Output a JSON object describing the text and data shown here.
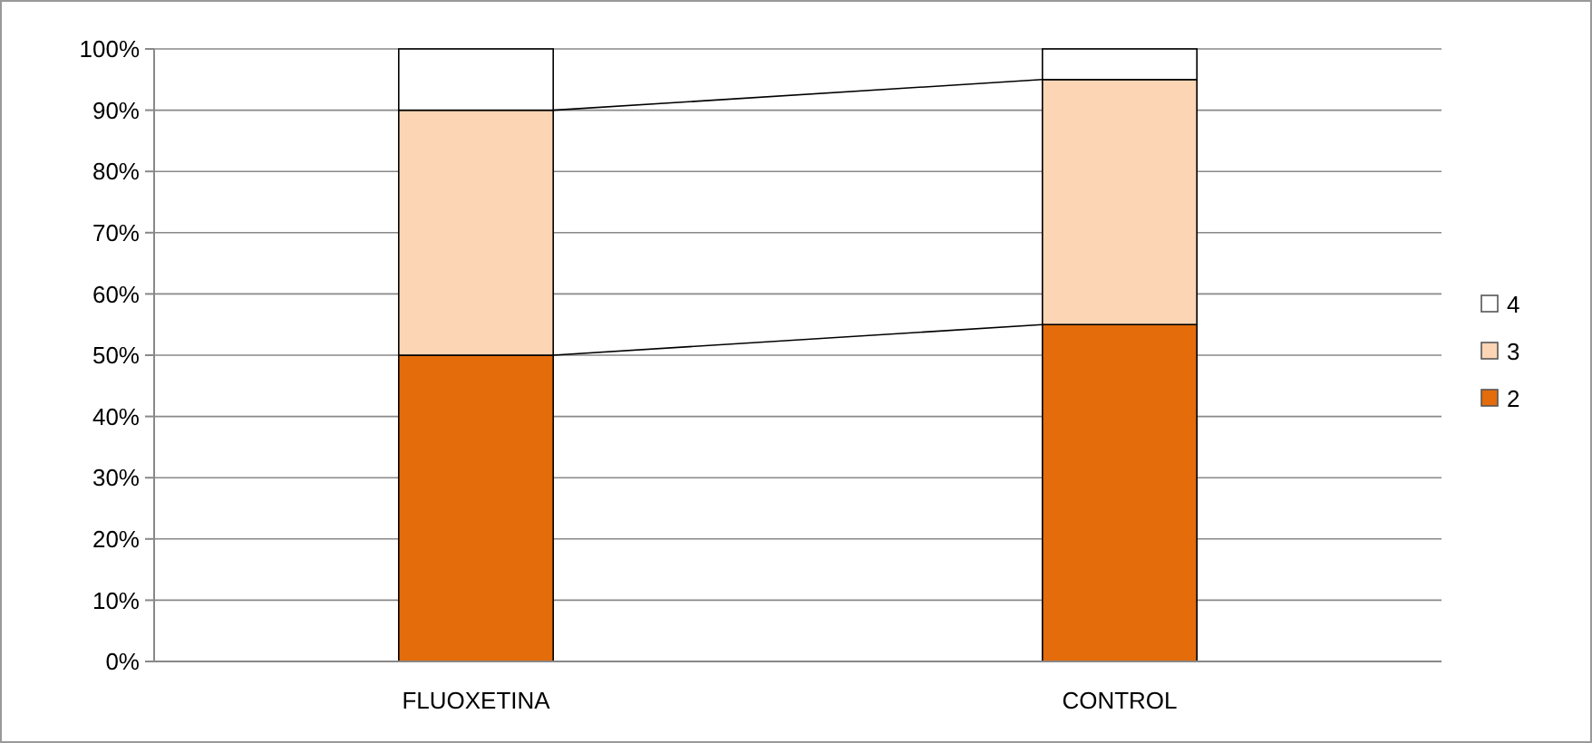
{
  "chart_data": {
    "type": "bar",
    "stacked": true,
    "categories": [
      "FLUOXETINA",
      "CONTROL"
    ],
    "series": [
      {
        "name": "2",
        "color": "#e46c0a",
        "values": [
          50,
          55
        ]
      },
      {
        "name": "3",
        "color": "#fcd5b5",
        "values": [
          40,
          40
        ]
      },
      {
        "name": "4",
        "color": "#ffffff",
        "values": [
          10,
          5
        ]
      }
    ],
    "ylim": [
      0,
      100
    ],
    "yticks": [
      {
        "value": 0,
        "label": "0%"
      },
      {
        "value": 10,
        "label": "10%"
      },
      {
        "value": 20,
        "label": "20%"
      },
      {
        "value": 30,
        "label": "30%"
      },
      {
        "value": 40,
        "label": "40%"
      },
      {
        "value": 50,
        "label": "50%"
      },
      {
        "value": 60,
        "label": "60%"
      },
      {
        "value": 70,
        "label": "70%"
      },
      {
        "value": 80,
        "label": "80%"
      },
      {
        "value": 90,
        "label": "90%"
      },
      {
        "value": 100,
        "label": "100%"
      }
    ],
    "grid": "y",
    "legend": "right"
  }
}
